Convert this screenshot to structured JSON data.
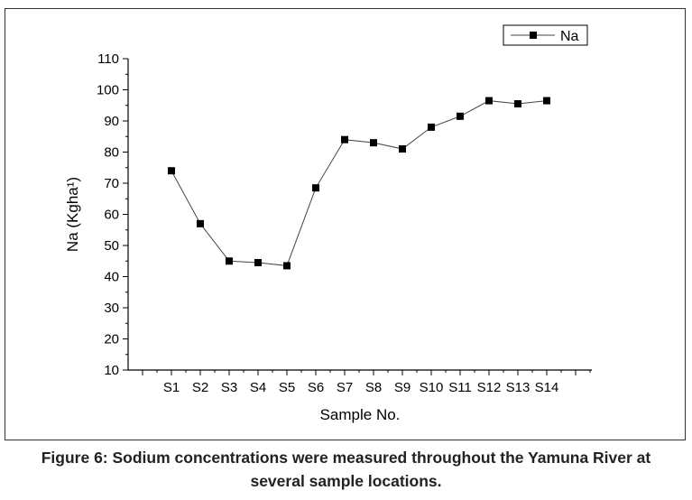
{
  "chart_data": {
    "type": "line",
    "categories": [
      "S1",
      "S2",
      "S3",
      "S4",
      "S5",
      "S6",
      "S7",
      "S8",
      "S9",
      "S10",
      "S11",
      "S12",
      "S13",
      "S14"
    ],
    "series": [
      {
        "name": "Na",
        "marker": "square",
        "values": [
          74,
          57,
          45,
          44.5,
          43.5,
          68.5,
          84,
          83,
          81,
          88,
          91.5,
          96.5,
          95.5,
          96.5
        ]
      }
    ],
    "xlabel": "Sample No.",
    "ylabel": "Na (Kgha¹)",
    "ylim": [
      10,
      110
    ],
    "yticks": [
      10,
      20,
      30,
      40,
      50,
      60,
      70,
      80,
      90,
      100,
      110
    ],
    "legend_position": "top-right",
    "grid": false,
    "line_color": "#444444",
    "marker_color": "#000000"
  },
  "caption": {
    "line1": "Figure 6: Sodium concentrations were measured throughout the Yamuna River at",
    "line2": "several sample locations."
  }
}
